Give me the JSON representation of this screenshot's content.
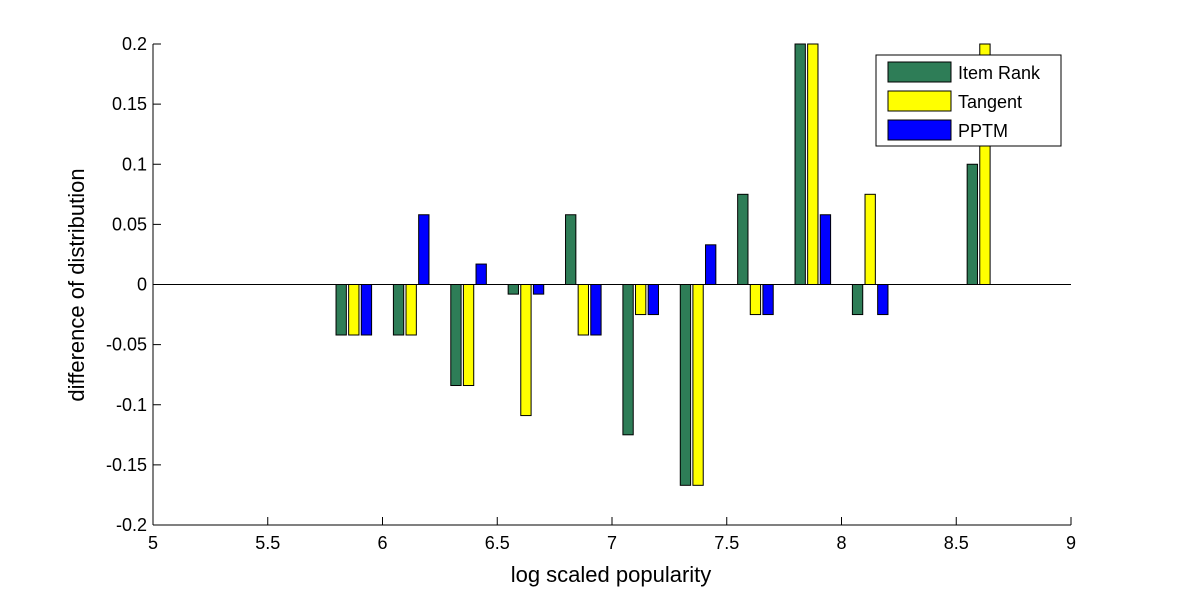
{
  "chart_data": {
    "type": "bar",
    "title": "",
    "xlabel": "log scaled popularity",
    "ylabel": "difference of distribution",
    "xlim": [
      5,
      9
    ],
    "ylim": [
      -0.2,
      0.2
    ],
    "xticks": [
      "5",
      "5.5",
      "6",
      "6.5",
      "7",
      "7.5",
      "8",
      "8.5",
      "9"
    ],
    "yticks": [
      "-0.2",
      "-0.15",
      "-0.1",
      "-0.05",
      "0",
      "0.05",
      "0.1",
      "0.15",
      "0.2"
    ],
    "grid": false,
    "legend_position": "top-right",
    "x": [
      5.875,
      6.125,
      6.375,
      6.625,
      6.875,
      7.125,
      7.375,
      7.625,
      7.875,
      8.125,
      8.625
    ],
    "series": [
      {
        "name": "Item Rank",
        "color": "#2e7d57",
        "values": [
          -0.042,
          -0.042,
          -0.084,
          -0.008,
          0.058,
          -0.125,
          -0.167,
          0.075,
          0.2,
          -0.025,
          0.1
        ]
      },
      {
        "name": "Tangent",
        "color": "#ffff00",
        "values": [
          -0.042,
          -0.042,
          -0.084,
          -0.109,
          -0.042,
          -0.025,
          -0.167,
          -0.025,
          0.2,
          0.075,
          0.2
        ]
      },
      {
        "name": "PPTM",
        "color": "#0000ff",
        "values": [
          -0.042,
          0.058,
          0.017,
          -0.008,
          -0.042,
          -0.025,
          0.033,
          -0.025,
          0.058,
          -0.025,
          0
        ]
      }
    ]
  }
}
